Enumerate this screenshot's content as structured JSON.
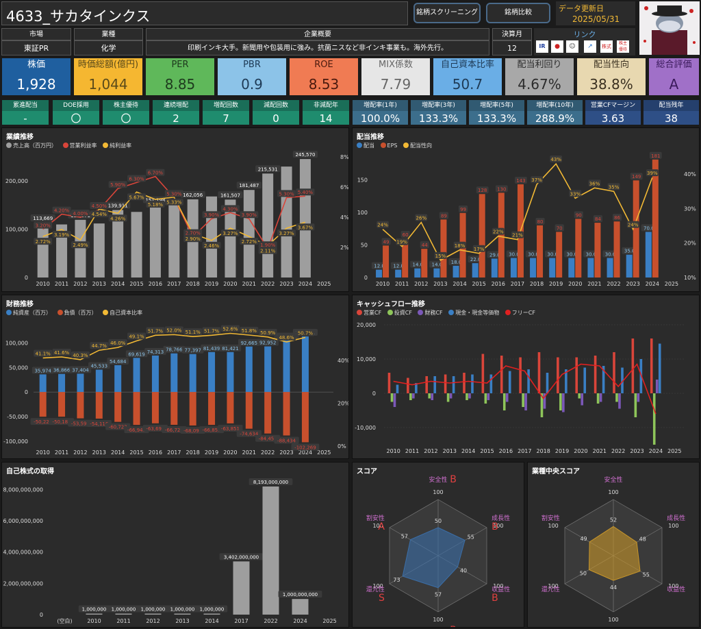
{
  "header": {
    "title": "4633_サカタインクス",
    "btn_screening": "銘柄スクリーニング",
    "btn_compare": "銘柄比較",
    "update_label": "データ更新日",
    "update_date": "2025/05/31"
  },
  "info": {
    "market_label": "市場",
    "market": "東証PR",
    "industry_label": "業種",
    "industry": "化学",
    "summary_label": "企業概要",
    "summary": "印刷インキ大手。新聞用や包装用に強み。抗菌ニスなど非インキ事業も。海外先行。",
    "fiscal_label": "決算月",
    "fiscal": "12",
    "link_label": "リンク",
    "links": [
      "IR BANK",
      "kabutan",
      "kabuyoho",
      "chart",
      "nikkei",
      "yutai"
    ]
  },
  "kpis": [
    {
      "label": "株価",
      "value": "1,928",
      "bg": "#1f5f9f",
      "fg": "#ffffff"
    },
    {
      "label": "時価総額(億円)",
      "value": "1,044",
      "bg": "#f5b731",
      "fg": "#5a4a1a"
    },
    {
      "label": "PER",
      "value": "8.85",
      "bg": "#5fb85a",
      "fg": "#1e3a1e"
    },
    {
      "label": "PBR",
      "value": "0.9",
      "bg": "#8cc3e8",
      "fg": "#1e3a55"
    },
    {
      "label": "ROE",
      "value": "8.53",
      "bg": "#f07b53",
      "fg": "#4a1a0e"
    },
    {
      "label": "MIX係数",
      "value": "7.79",
      "bg": "#e6e6e6",
      "fg": "#666666"
    },
    {
      "label": "自己資本比率",
      "value": "50.7",
      "bg": "#6aaee6",
      "fg": "#1e3a55"
    },
    {
      "label": "配当利回り",
      "value": "4.67%",
      "bg": "#a8a8a8",
      "fg": "#2b2b2b"
    },
    {
      "label": "配当性向",
      "value": "38.8%",
      "bg": "#e8d8b0",
      "fg": "#3a3020"
    },
    {
      "label": "総合評価",
      "value": "A",
      "bg": "#a070c8",
      "fg": "#3a1a5a"
    }
  ],
  "small_green": [
    {
      "label": "累進配当",
      "value": "-"
    },
    {
      "label": "DOE採用",
      "value": "〇"
    },
    {
      "label": "株主優待",
      "value": "〇"
    },
    {
      "label": "連続増配",
      "value": "2"
    },
    {
      "label": "増配回数",
      "value": "7"
    },
    {
      "label": "減配回数",
      "value": "0"
    },
    {
      "label": "非減配年",
      "value": "14"
    }
  ],
  "small_blue": [
    {
      "label": "増配率(1年)",
      "value": "100.0%"
    },
    {
      "label": "増配率(3年)",
      "value": "133.3%"
    },
    {
      "label": "増配率(5年)",
      "value": "133.3%"
    },
    {
      "label": "増配率(10年)",
      "value": "288.9%"
    },
    {
      "label": "営業CFマージン",
      "value": "3.63"
    },
    {
      "label": "配当残年",
      "value": "38"
    }
  ],
  "panels": {
    "perf": {
      "title": "業績推移",
      "legend": [
        "売上高（百万円）",
        "営業利益率",
        "純利益率"
      ]
    },
    "div": {
      "title": "配当推移",
      "legend": [
        "配当",
        "EPS",
        "配当性向"
      ]
    },
    "fin": {
      "title": "財務推移",
      "legend": [
        "純資産（百万）",
        "負債（百万）",
        "自己資本比率"
      ]
    },
    "cf": {
      "title": "キャッシュフロー推移",
      "legend": [
        "営業CF",
        "投資CF",
        "財務CF",
        "現金・現金等価物",
        "フリーCF"
      ]
    },
    "buyback": {
      "title": "自己株式の取得"
    },
    "score": {
      "title": "スコア"
    },
    "median": {
      "title": "業種中央スコア"
    }
  },
  "chart_data": [
    {
      "type": "bar",
      "name": "perf",
      "categories": [
        "2010",
        "2011",
        "2012",
        "2013",
        "2014",
        "2015",
        "2016",
        "2017",
        "2018",
        "2019",
        "2020",
        "2021",
        "2022",
        "2023",
        "2024",
        "2025"
      ],
      "series": [
        {
          "name": "売上高（百万円）",
          "values": [
            113669,
            null,
            119571,
            null,
            139911,
            null,
            151198,
            null,
            162056,
            null,
            161507,
            181487,
            215531,
            null,
            245570,
            null
          ],
          "approx": [
            113669,
            110000,
            119571,
            112000,
            139911,
            136000,
            151198,
            155000,
            162056,
            168000,
            161507,
            181487,
            215531,
            230000,
            245570,
            null
          ]
        },
        {
          "name": "営業利益率",
          "values": [
            3.2,
            4.2,
            4.0,
            4.5,
            5.9,
            6.3,
            6.7,
            5.3,
            2.7,
            3.9,
            4.3,
            3.9,
            1.9,
            5.3,
            5.4,
            null
          ]
        },
        {
          "name": "純利益率",
          "values": [
            2.72,
            3.19,
            2.49,
            4.54,
            4.26,
            5.67,
            5.18,
            5.33,
            2.9,
            2.46,
            3.27,
            2.72,
            2.11,
            3.27,
            3.67,
            null
          ]
        }
      ],
      "ylim": [
        0,
        250000
      ],
      "y2lim": [
        0,
        8
      ],
      "yticks": [
        "0",
        "100,000",
        "200,000"
      ],
      "y2ticks": [
        "2%",
        "4%",
        "6%",
        "8%"
      ]
    },
    {
      "type": "bar",
      "name": "div",
      "categories": [
        "2010",
        "2011",
        "2012",
        "2013",
        "2014",
        "2015",
        "2016",
        "2017",
        "2018",
        "2019",
        "2020",
        "2021",
        "2022",
        "2023",
        "2024",
        "2025"
      ],
      "series": [
        {
          "name": "配当",
          "values": [
            12,
            12,
            14,
            14,
            18,
            22,
            29,
            30,
            30,
            30,
            30,
            30,
            30,
            35,
            70,
            null
          ]
        },
        {
          "name": "EPS",
          "values": [
            49,
            60,
            44,
            89,
            99,
            128,
            130,
            143,
            80,
            70,
            90,
            84,
            86,
            149,
            181,
            null
          ]
        },
        {
          "name": "配当性向",
          "values": [
            24,
            19,
            26,
            15,
            18,
            17,
            22,
            21,
            37,
            43,
            33,
            36,
            35,
            24,
            39,
            null
          ]
        }
      ],
      "ylim": [
        0,
        185
      ],
      "y2lim": [
        10,
        45
      ],
      "yticks": [
        "0",
        "50",
        "100",
        "150"
      ],
      "y2ticks": [
        "10%",
        "20%",
        "30%",
        "40%"
      ]
    },
    {
      "type": "bar",
      "name": "fin",
      "categories": [
        "2010",
        "2011",
        "2012",
        "2013",
        "2014",
        "2015",
        "2016",
        "2017",
        "2018",
        "2019",
        "2020",
        "2021",
        "2022",
        "2023",
        "2024",
        "2025"
      ],
      "series": [
        {
          "name": "純資産（百万）",
          "values": [
            35974,
            36866,
            37404,
            45533,
            54684,
            69619,
            74313,
            78766,
            77397,
            81439,
            81421,
            92665,
            92952,
            105651,
            113221,
            null
          ]
        },
        {
          "name": "負債（百万）",
          "values": [
            -50225,
            -50183,
            -53590,
            -54116,
            -60723,
            -66945,
            -63699,
            -66723,
            -68098,
            -66853,
            -63851,
            -74634,
            -84451,
            -88434,
            -102269,
            null
          ]
        },
        {
          "name": "自己資本比率",
          "values": [
            41.1,
            41.6,
            40.3,
            44.7,
            46.0,
            49.1,
            51.7,
            52.0,
            51.1,
            51.7,
            52.6,
            51.8,
            50.9,
            48.6,
            50.7,
            null
          ]
        }
      ],
      "ylim": [
        -110000,
        130000
      ],
      "y2lim": [
        0,
        55
      ],
      "yticks": [
        "-100,000",
        "-50,000",
        "0",
        "50,000",
        "100,000"
      ],
      "y2ticks": [
        "0%",
        "20%",
        "40%"
      ]
    },
    {
      "type": "bar",
      "name": "cf",
      "categories": [
        "2010",
        "2011",
        "2012",
        "2013",
        "2014",
        "2015",
        "2016",
        "2017",
        "2018",
        "2019",
        "2020",
        "2021",
        "2022",
        "2023",
        "2024",
        "2025"
      ],
      "series": [
        {
          "name": "営業CF",
          "values": [
            6000,
            4500,
            5000,
            5500,
            6000,
            11500,
            11000,
            10500,
            12000,
            10500,
            10500,
            11000,
            12000,
            16000,
            16000,
            null
          ]
        },
        {
          "name": "投資CF",
          "values": [
            -2500,
            -2000,
            -1500,
            -2500,
            -2000,
            -3000,
            -5000,
            -4000,
            -7000,
            -5000,
            -1500,
            -3000,
            -2500,
            -7000,
            -15000,
            null
          ]
        },
        {
          "name": "財務CF",
          "values": [
            -4000,
            -1500,
            -2000,
            -1500,
            -1500,
            -2000,
            -2500,
            -5000,
            -4500,
            -5500,
            -3500,
            -2500,
            -4500,
            -2500,
            4000,
            null
          ]
        },
        {
          "name": "現金・現金等価物",
          "values": [
            2500,
            3000,
            5000,
            5000,
            5500,
            5500,
            6500,
            7000,
            6000,
            7000,
            7500,
            8000,
            7500,
            10000,
            14500,
            null
          ]
        },
        {
          "name": "フリーCF",
          "values": [
            3500,
            2500,
            3500,
            3000,
            3500,
            3000,
            8000,
            6500,
            -1500,
            5500,
            8500,
            8000,
            2000,
            8500,
            -6000,
            null
          ]
        }
      ],
      "ylim": [
        -15000,
        21000
      ],
      "yticks": [
        "-10,000",
        "0",
        "10,000",
        "20,000"
      ]
    },
    {
      "type": "bar",
      "name": "buyback",
      "categories": [
        "(空白)",
        "2010",
        "2011",
        "2012",
        "2013",
        "2014",
        "2017",
        "2022",
        "2024",
        "2025"
      ],
      "values": [
        0,
        1000000,
        1000000,
        1000000,
        1000000,
        1000000,
        3402000000,
        8193000000,
        1000000000,
        null
      ],
      "labels": [
        "",
        "1,000,000",
        "1,000,000",
        "1,000,000",
        "1,000,000",
        "1,000,000",
        "3,402,000,000",
        "8,193,000,000",
        "1,000,000,000",
        ""
      ],
      "ylim": [
        0,
        8500000000
      ],
      "yticks": [
        "0",
        "2,000,000,000",
        "4,000,000,000",
        "6,000,000,000",
        "8,000,000,000"
      ]
    },
    {
      "type": "radar",
      "name": "score",
      "axes": [
        "安全性",
        "成長性",
        "収益性",
        "効率性",
        "還元性",
        "割安性"
      ],
      "max": 100,
      "values": [
        50,
        55,
        40,
        57,
        73,
        57
      ],
      "grades": [
        "B",
        "B",
        "B",
        "B",
        "S",
        "A"
      ]
    },
    {
      "type": "radar",
      "name": "median",
      "axes": [
        "安全性",
        "成長性",
        "収益性",
        "効率性",
        "還元性",
        "割安性"
      ],
      "max": 100,
      "values": [
        52,
        48,
        55,
        44,
        50,
        49
      ]
    }
  ],
  "colors": {
    "blue": "#3a7fc4",
    "red": "#d9453a",
    "orange": "#c8502d",
    "yellow": "#f2b935",
    "gray": "#9e9e9e",
    "green": "#8ec55a",
    "purple": "#7b58b8",
    "fcf": "#e02020",
    "teal": "#1f8c6e",
    "bluegrey": "#3c6e8c",
    "radar1": "#4080c0",
    "radar2": "#d8a030"
  }
}
